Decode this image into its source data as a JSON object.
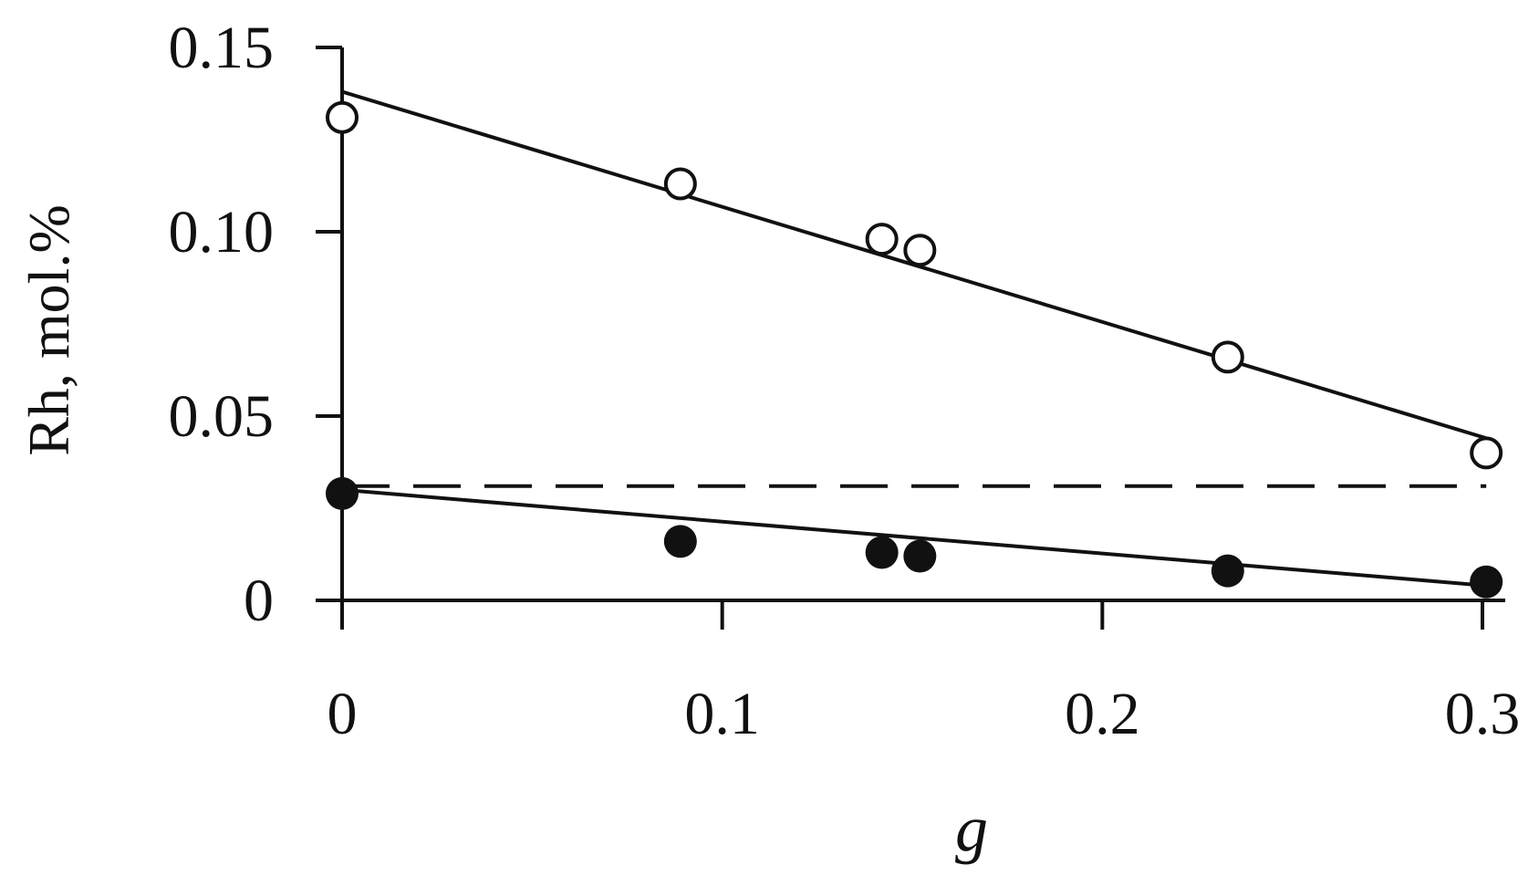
{
  "chart_data": {
    "type": "scatter",
    "title": "",
    "xlabel": "g",
    "ylabel": "Rh, mol.%",
    "xlim": [
      0,
      0.3
    ],
    "ylim": [
      0,
      0.15
    ],
    "x_ticks": [
      "0",
      "0.1",
      "0.2",
      "0.3"
    ],
    "y_ticks": [
      "0",
      "0.05",
      "0.10",
      "0.15"
    ],
    "x_tick_values": [
      0,
      0.1,
      0.2,
      0.3
    ],
    "y_tick_values": [
      0,
      0.05,
      0.1,
      0.15
    ],
    "grid": false,
    "legend": "none",
    "series": [
      {
        "marker": "open-circle",
        "color": "#111111",
        "x": [
          0,
          0.089,
          0.142,
          0.152,
          0.233,
          0.301
        ],
        "y": [
          0.131,
          0.113,
          0.098,
          0.095,
          0.066,
          0.04
        ]
      },
      {
        "marker": "filled-circle",
        "color": "#111111",
        "x": [
          0,
          0.089,
          0.142,
          0.152,
          0.233,
          0.301
        ],
        "y": [
          0.029,
          0.016,
          0.013,
          0.012,
          0.008,
          0.005
        ]
      }
    ],
    "fit_lines": [
      {
        "style": "solid",
        "x": [
          0,
          0.301
        ],
        "y": [
          0.138,
          0.044
        ]
      },
      {
        "style": "solid",
        "x": [
          0,
          0.301
        ],
        "y": [
          0.03,
          0.004
        ]
      },
      {
        "style": "dashed",
        "x": [
          0,
          0.301
        ],
        "y": [
          0.031,
          0.031
        ]
      }
    ]
  }
}
